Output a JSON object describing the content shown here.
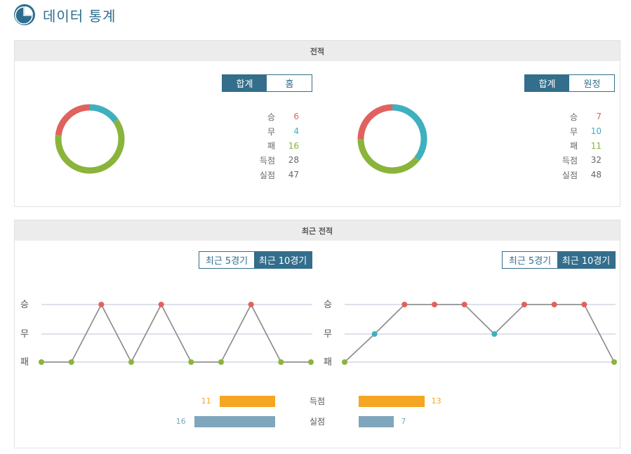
{
  "header": {
    "title": "데이터 통계",
    "icon": "pie-chart-icon"
  },
  "record": {
    "title": "전적",
    "left": {
      "tabs": [
        "합계",
        "홈"
      ],
      "active_tab": 0,
      "stats": [
        {
          "label": "승",
          "value": "6",
          "color": "#e0625f"
        },
        {
          "label": "무",
          "value": "4",
          "color": "#3fb0bd"
        },
        {
          "label": "패",
          "value": "16",
          "color": "#8ab43a"
        },
        {
          "label": "득점",
          "value": "28",
          "color": "#666666"
        },
        {
          "label": "실점",
          "value": "47",
          "color": "#666666"
        }
      ]
    },
    "right": {
      "tabs": [
        "합계",
        "원정"
      ],
      "active_tab": 0,
      "stats": [
        {
          "label": "승",
          "value": "7",
          "color": "#e0625f"
        },
        {
          "label": "무",
          "value": "10",
          "color": "#3fb0bd"
        },
        {
          "label": "패",
          "value": "11",
          "color": "#8ab43a"
        },
        {
          "label": "득점",
          "value": "32",
          "color": "#666666"
        },
        {
          "label": "실점",
          "value": "48",
          "color": "#666666"
        }
      ]
    }
  },
  "recent": {
    "title": "최근 전적",
    "left_tabs": [
      "최근 5경기",
      "최근 10경기"
    ],
    "right_tabs": [
      "최근 5경기",
      "최근 10경기"
    ],
    "active_tab": 1,
    "y_labels": [
      "승",
      "무",
      "패"
    ],
    "left_results": [
      "패",
      "패",
      "승",
      "패",
      "승",
      "패",
      "패",
      "승",
      "패",
      "패"
    ],
    "right_results": [
      "패",
      "무",
      "승",
      "승",
      "승",
      "무",
      "승",
      "승",
      "승",
      "패"
    ],
    "colors": {
      "win": "#e0625f",
      "draw": "#3fb0bd",
      "loss": "#8ab43a",
      "line": "#888888",
      "grid": "#dde1ea"
    },
    "goals": {
      "scored_label": "득점",
      "conceded_label": "실점",
      "left_scored": 11,
      "right_scored": 13,
      "left_conceded": 16,
      "right_conceded": 7,
      "scored_color": "#f5a623",
      "conceded_color": "#7fa6bd"
    }
  }
}
